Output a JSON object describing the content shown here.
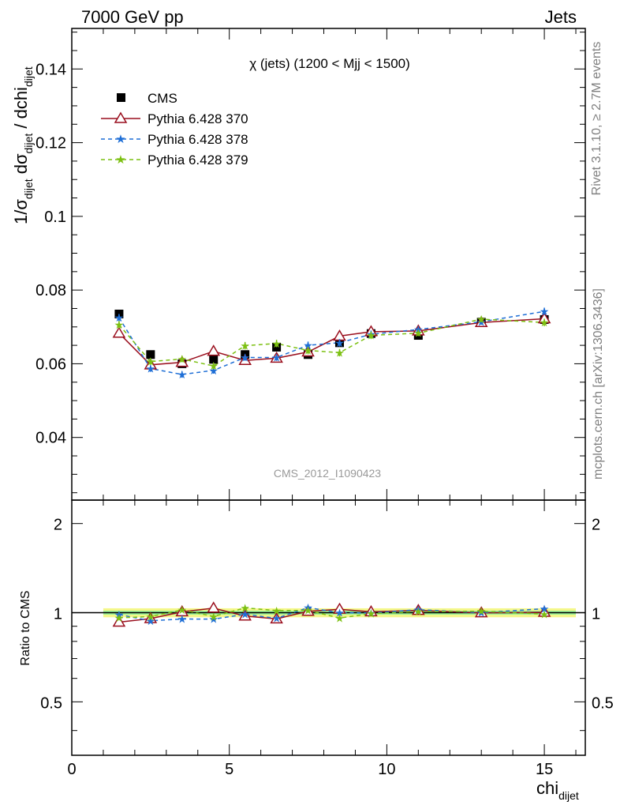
{
  "header": {
    "left": "7000 GeV pp",
    "right": "Jets"
  },
  "side_labels": {
    "rivet": "Rivet 3.1.10, ≥ 2.7M events",
    "mcplots": "mcplots.cern.ch [arXiv:1306.3436]"
  },
  "watermark": "CMS_2012_I1090423",
  "colors": {
    "cms": "#000000",
    "py370": "#9a0f1e",
    "py378": "#1f6fd6",
    "py379": "#7cc012",
    "band_outer": "#f4f78a",
    "band_inner": "#9af29a"
  },
  "chart_data": [
    {
      "type": "line",
      "title": "χ (jets) (1200 < Mjj < 1500)",
      "ylabel": {
        "pre": "1/σ",
        "sub1": "dijet",
        "mid": " dσ",
        "sub2": "dijet",
        "post": " / dchi",
        "sub3": "dijet"
      },
      "xlim": [
        0,
        16.3
      ],
      "ylim": [
        0.023,
        0.151
      ],
      "yticks": [
        0.04,
        0.06,
        0.08,
        0.1,
        0.12,
        0.14
      ],
      "ytick_labels": [
        "0.04",
        "0.06",
        "0.08",
        "0.1",
        "0.12",
        "0.14"
      ],
      "x": [
        1.5,
        2.5,
        3.5,
        4.5,
        5.5,
        6.5,
        7.5,
        8.5,
        9.5,
        11,
        13,
        15
      ],
      "series": [
        {
          "name": "CMS",
          "marker": "square",
          "style": "none",
          "values": [
            0.0735,
            0.0625,
            0.06,
            0.0612,
            0.0625,
            0.0645,
            0.0625,
            0.0657,
            0.0682,
            0.0677,
            0.0713,
            0.072
          ],
          "err": [
            0.001,
            0.0007,
            0.0007,
            0.0007,
            0.0007,
            0.0008,
            0.0007,
            0.0008,
            0.0008,
            0.0007,
            0.0008,
            0.0009
          ]
        },
        {
          "name": "Pythia 6.428 370",
          "marker": "triangle",
          "style": "solid",
          "values": [
            0.0683,
            0.0597,
            0.0604,
            0.0634,
            0.0609,
            0.0615,
            0.0632,
            0.0675,
            0.0687,
            0.0689,
            0.0712,
            0.0722
          ],
          "err": [
            0.001,
            0.0008,
            0.0008,
            0.0009,
            0.0008,
            0.0008,
            0.0008,
            0.0009,
            0.0009,
            0.0007,
            0.0007,
            0.0008
          ]
        },
        {
          "name": "Pythia 6.428 378",
          "marker": "star",
          "style": "dashed",
          "values": [
            0.0725,
            0.0587,
            0.0571,
            0.0582,
            0.0617,
            0.0617,
            0.065,
            0.0657,
            0.068,
            0.0693,
            0.0714,
            0.0742
          ],
          "err": [
            0.001,
            0.0009,
            0.0009,
            0.0009,
            0.0009,
            0.0009,
            0.001,
            0.001,
            0.001,
            0.0008,
            0.0008,
            0.001
          ]
        },
        {
          "name": "Pythia 6.428 379",
          "marker": "star",
          "style": "dashed",
          "values": [
            0.0706,
            0.0606,
            0.0613,
            0.0594,
            0.0649,
            0.0655,
            0.0636,
            0.063,
            0.0677,
            0.0683,
            0.0721,
            0.0712
          ],
          "err": [
            0.001,
            0.0009,
            0.0009,
            0.0009,
            0.001,
            0.001,
            0.001,
            0.001,
            0.001,
            0.0008,
            0.0008,
            0.001
          ]
        }
      ]
    },
    {
      "type": "line",
      "ylabel": "Ratio to CMS",
      "xlabel": {
        "main": "chi",
        "sub": "dijet"
      },
      "xlim": [
        0,
        16.3
      ],
      "ylim": [
        0.33,
        2.4
      ],
      "yscale": "log",
      "xticks": [
        0,
        5,
        10,
        15
      ],
      "xtick_labels": [
        "0",
        "5",
        "10",
        "15"
      ],
      "yticks": [
        0.5,
        1,
        2
      ],
      "ytick_labels": [
        "0.5",
        "1",
        "2"
      ],
      "x": [
        1.5,
        2.5,
        3.5,
        4.5,
        5.5,
        6.5,
        7.5,
        8.5,
        9.5,
        11,
        13,
        15
      ],
      "band": {
        "x_range": [
          1,
          16
        ],
        "outer": [
          0.965,
          1.035
        ],
        "inner": [
          0.985,
          1.015
        ]
      },
      "series": [
        {
          "name": "Pythia 6.428 370",
          "values": [
            0.929,
            0.955,
            1.007,
            1.036,
            0.974,
            0.953,
            1.011,
            1.027,
            1.007,
            1.018,
            0.999,
            1.003
          ]
        },
        {
          "name": "Pythia 6.428 378",
          "values": [
            0.986,
            0.939,
            0.952,
            0.951,
            0.987,
            0.957,
            1.04,
            1.0,
            0.997,
            1.024,
            1.001,
            1.031
          ]
        },
        {
          "name": "Pythia 6.428 379",
          "values": [
            0.961,
            0.97,
            1.022,
            0.971,
            1.038,
            1.016,
            1.018,
            0.959,
            0.993,
            1.009,
            1.011,
            0.989
          ]
        }
      ]
    }
  ]
}
